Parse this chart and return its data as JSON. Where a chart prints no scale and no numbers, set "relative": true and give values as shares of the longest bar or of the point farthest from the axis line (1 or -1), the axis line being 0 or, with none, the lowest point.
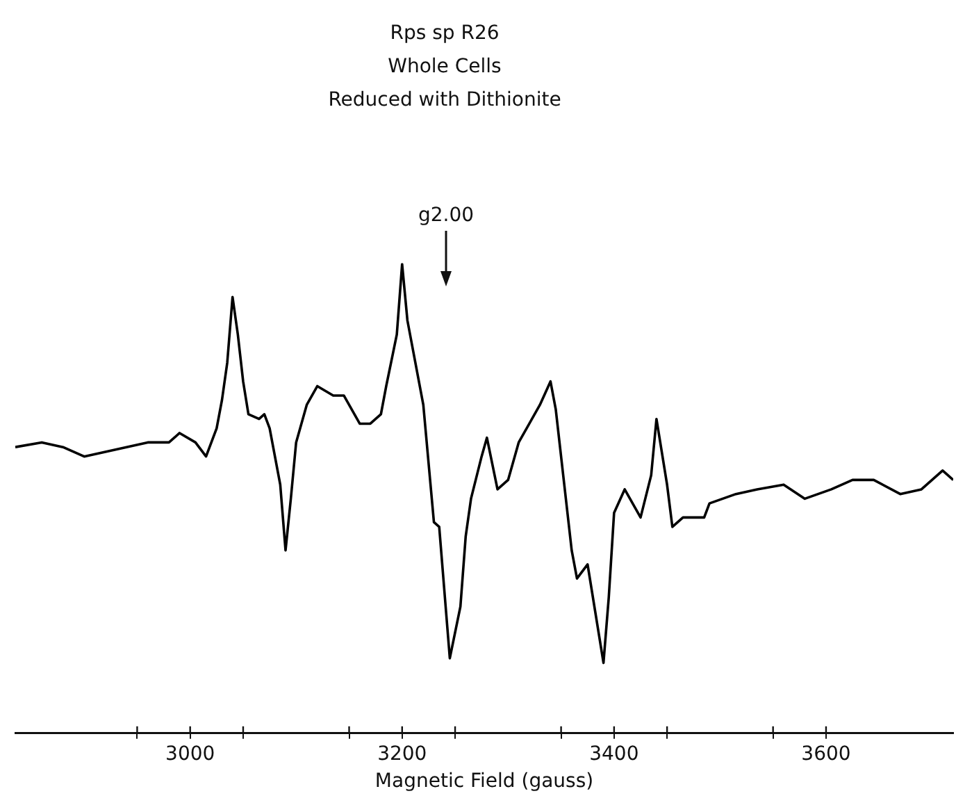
{
  "chart_data": {
    "type": "line",
    "title": "Rps sp R26",
    "subtitle": "Whole Cells\nReduced with Dithionite",
    "xlabel": "Magnetic Field (gauss)",
    "relative": true,
    "legend": false,
    "grid": false,
    "marker": "none",
    "line_style": "solid",
    "tick_labels": "x",
    "xlim": [
      2835,
      3720
    ],
    "xticks": [
      {
        "value": 2950,
        "label": null
      },
      3000,
      {
        "value": 3050,
        "label": null
      },
      {
        "value": 3150,
        "label": null
      },
      3200,
      {
        "value": 3250,
        "label": null
      },
      {
        "value": 3350,
        "label": null
      },
      3400,
      {
        "value": 3450,
        "label": null
      },
      {
        "value": 3550,
        "label": null
      },
      3600
    ],
    "annotations": [
      "g2.00"
    ],
    "series": [
      {
        "color": "#000000",
        "x": [
          2835,
          2860,
          2880,
          2900,
          2920,
          2940,
          2960,
          2980,
          2990,
          3005,
          3015,
          3025,
          3030,
          3035,
          3040,
          3045,
          3050,
          3055,
          3065,
          3070,
          3075,
          3085,
          3090,
          3095,
          3100,
          3110,
          3120,
          3135,
          3145,
          3155,
          3160,
          3170,
          3180,
          3185,
          3195,
          3200,
          3205,
          3220,
          3230,
          3235,
          3245,
          3255,
          3260,
          3265,
          3275,
          3280,
          3290,
          3300,
          3310,
          3325,
          3330,
          3340,
          3345,
          3360,
          3365,
          3375,
          3380,
          3390,
          3395,
          3400,
          3410,
          3420,
          3425,
          3435,
          3440,
          3450,
          3455,
          3465,
          3485,
          3490,
          3515,
          3535,
          3560,
          3580,
          3605,
          3625,
          3645,
          3670,
          3690,
          3710,
          3720
        ],
        "values": [
          0.61,
          0.62,
          0.61,
          0.59,
          0.6,
          0.61,
          0.62,
          0.62,
          0.64,
          0.62,
          0.59,
          0.65,
          0.71,
          0.79,
          0.93,
          0.85,
          0.75,
          0.68,
          0.67,
          0.68,
          0.65,
          0.53,
          0.39,
          0.5,
          0.62,
          0.7,
          0.74,
          0.72,
          0.72,
          0.68,
          0.66,
          0.66,
          0.68,
          0.74,
          0.85,
          1,
          0.88,
          0.7,
          0.45,
          0.44,
          0.16,
          0.27,
          0.42,
          0.5,
          0.59,
          0.63,
          0.52,
          0.54,
          0.62,
          0.68,
          0.7,
          0.75,
          0.69,
          0.39,
          0.33,
          0.36,
          0.29,
          0.15,
          0.29,
          0.47,
          0.52,
          0.48,
          0.46,
          0.55,
          0.67,
          0.53,
          0.44,
          0.46,
          0.46,
          0.49,
          0.51,
          0.52,
          0.53,
          0.5,
          0.52,
          0.54,
          0.54,
          0.51,
          0.52,
          0.56,
          0.54
        ]
      }
    ]
  }
}
